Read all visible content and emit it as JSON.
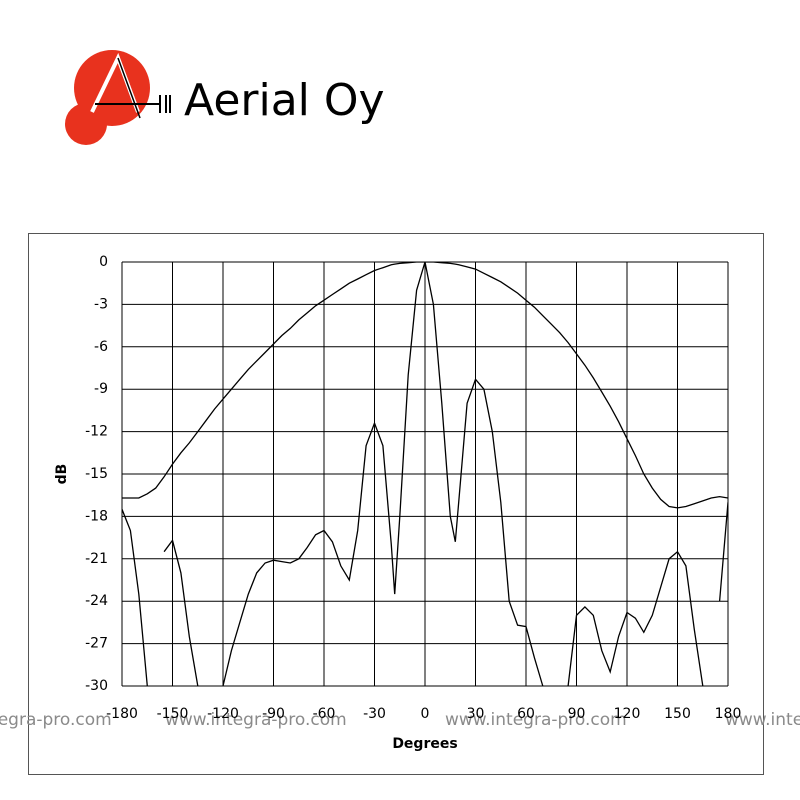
{
  "logo": {
    "text": "Aerial Oy"
  },
  "watermark": "www.integra-pro.com",
  "chart_data": {
    "type": "line",
    "xlabel": "Degrees",
    "ylabel": "dB",
    "xlim": [
      -180,
      180
    ],
    "ylim": [
      -30,
      0
    ],
    "xticks": [
      -180,
      -150,
      -120,
      -90,
      -60,
      -30,
      0,
      30,
      60,
      90,
      120,
      150,
      180
    ],
    "yticks": [
      0,
      -3,
      -6,
      -9,
      -12,
      -15,
      -18,
      -21,
      -24,
      -27,
      -30
    ],
    "grid": true,
    "x": [
      -180,
      -175,
      -170,
      -165,
      -160,
      -155,
      -150,
      -145,
      -140,
      -135,
      -130,
      -125,
      -120,
      -115,
      -110,
      -105,
      -100,
      -95,
      -90,
      -85,
      -80,
      -75,
      -70,
      -65,
      -60,
      -55,
      -50,
      -45,
      -40,
      -35,
      -30,
      -25,
      -20,
      -18,
      -15,
      -10,
      -5,
      0,
      5,
      10,
      15,
      18,
      20,
      25,
      30,
      35,
      40,
      45,
      50,
      55,
      60,
      65,
      70,
      75,
      80,
      85,
      90,
      95,
      100,
      105,
      110,
      115,
      120,
      125,
      130,
      135,
      140,
      145,
      150,
      155,
      160,
      165,
      170,
      175,
      180
    ],
    "series": [
      {
        "color": "#000000",
        "values": [
          -16.7,
          -16.7,
          -16.7,
          -16.4,
          -16.0,
          -15.2,
          -14.3,
          -13.5,
          -12.8,
          -12.0,
          -11.2,
          -10.4,
          -9.7,
          -9.0,
          -8.3,
          -7.6,
          -7.0,
          -6.4,
          -5.8,
          -5.2,
          -4.7,
          -4.1,
          -3.6,
          -3.1,
          -2.7,
          -2.3,
          -1.9,
          -1.5,
          -1.2,
          -0.9,
          -0.6,
          -0.4,
          -0.2,
          -0.15,
          -0.1,
          -0.05,
          0,
          0,
          0,
          -0.05,
          -0.1,
          -0.15,
          -0.2,
          -0.35,
          -0.5,
          -0.8,
          -1.1,
          -1.4,
          -1.8,
          -2.2,
          -2.7,
          -3.2,
          -3.8,
          -4.4,
          -5.0,
          -5.7,
          -6.5,
          -7.3,
          -8.2,
          -9.2,
          -10.2,
          -11.3,
          -12.5,
          -13.7,
          -15.0,
          -16.0,
          -16.8,
          -17.3,
          -17.4,
          -17.3,
          -17.1,
          -16.9,
          -16.7,
          -16.6,
          -16.7
        ]
      },
      {
        "color": "#000000",
        "values": [
          -17.5,
          -19,
          -23.5,
          -30,
          null,
          -20.5,
          -19.7,
          -22,
          -26.5,
          -30,
          null,
          null,
          -30,
          -27.5,
          -25.5,
          -23.5,
          -22,
          -21.3,
          -21.1,
          -21.2,
          -21.3,
          -21,
          -20.2,
          -19.3,
          -19,
          -19.8,
          -21.5,
          -22.5,
          -19,
          -13,
          -11.4,
          -13,
          -20,
          -23.5,
          -18,
          -8,
          -2,
          0,
          -3,
          -10,
          -18,
          -19.8,
          -17,
          -10,
          -8.3,
          -9,
          -12,
          -17,
          -24,
          -25.7,
          -25.8,
          -28,
          -30,
          null,
          null,
          -30,
          -25,
          -24.4,
          -25,
          -27.5,
          -29,
          -26.5,
          -24.8,
          -25.2,
          -26.2,
          -25,
          -23,
          -21,
          -20.5,
          -21.5,
          -26,
          -30,
          null,
          -24,
          -17
        ]
      }
    ]
  }
}
